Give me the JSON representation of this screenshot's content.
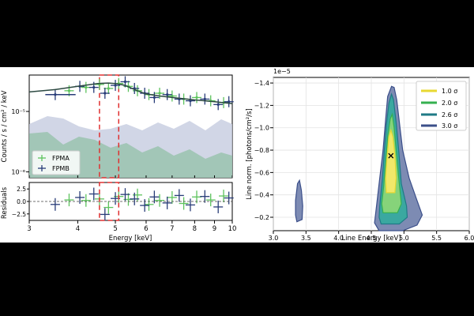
{
  "chart_data": [
    {
      "type": "scatter",
      "panel": "spectrum",
      "ylabel": "Counts / s / cm² / keV",
      "xlabel": "Energy [keV]",
      "xscale": "log",
      "yscale": "log",
      "xlim": [
        3,
        10
      ],
      "ylim": [
        8e-07,
        4e-05
      ],
      "ytick_labels": [
        "10⁻⁵",
        "10⁻⁶"
      ],
      "legend": {
        "placement": "lower-left",
        "entries": [
          "FPMA",
          "FPMB"
        ]
      },
      "colors": {
        "FPMA": "#5dc35d",
        "FPMB": "#283c78",
        "model": "#2d4a42",
        "highlight": "#e03030"
      },
      "highlight_band_keV": [
        4.55,
        5.1
      ],
      "series": [
        {
          "name": "FPMA",
          "x": [
            3.8,
            4.2,
            4.55,
            4.8,
            5.1,
            5.4,
            5.7,
            6.1,
            6.5,
            7.0,
            7.5,
            8.1,
            8.8,
            9.5
          ],
          "y": [
            2.2e-05,
            2.5e-05,
            2.8e-05,
            2.4e-05,
            2.9e-05,
            2.6e-05,
            2.2e-05,
            1.9e-05,
            2e-05,
            1.8e-05,
            1.6e-05,
            1.7e-05,
            1.5e-05,
            1.4e-05
          ]
        },
        {
          "name": "FPMB",
          "x": [
            3.5,
            4.05,
            4.4,
            4.7,
            5.0,
            5.3,
            5.6,
            5.95,
            6.3,
            6.8,
            7.3,
            7.8,
            8.5,
            9.2,
            9.8
          ],
          "y": [
            1.9e-05,
            2.6e-05,
            2.5e-05,
            2e-05,
            2.7e-05,
            3.1e-05,
            2.4e-05,
            2e-05,
            1.7e-05,
            1.9e-05,
            1.6e-05,
            1.5e-05,
            1.6e-05,
            1.3e-05,
            1.45e-05
          ]
        }
      ],
      "model_keV": [
        3,
        3.5,
        4,
        4.5,
        4.8,
        5.0,
        5.3,
        5.7,
        6.0,
        6.5,
        7,
        8,
        9,
        10
      ],
      "model_flux": [
        2.1e-05,
        2.3e-05,
        2.6e-05,
        2.9e-05,
        2.95e-05,
        2.9e-05,
        2.7e-05,
        2.2e-05,
        1.95e-05,
        1.8e-05,
        1.7e-05,
        1.55e-05,
        1.45e-05,
        1.35e-05
      ],
      "residuals": {
        "ylabel": "Residuals",
        "ylim": [
          -3.8,
          3.8
        ],
        "yticks": [
          2.5,
          0.0,
          -2.5
        ],
        "ytick_labels": [
          "2.5",
          "0.0",
          "−2.5"
        ],
        "xticks": [
          3,
          4,
          5,
          6,
          7,
          8,
          9,
          10
        ],
        "xtick_labels": [
          "3",
          "4",
          "5",
          "6",
          "7",
          "8",
          "9",
          "10"
        ],
        "FPMA": [
          0.3,
          0.2,
          0.5,
          -1.2,
          1.0,
          0.4,
          1.3,
          -0.6,
          0.2,
          0.8,
          -0.4,
          0.9,
          0.3,
          1.1
        ],
        "FPMB": [
          -0.6,
          0.8,
          1.5,
          -2.6,
          0.6,
          1.4,
          0.5,
          -0.8,
          0.9,
          -0.3,
          1.2,
          -0.7,
          1.0,
          -1.1,
          0.7
        ]
      }
    },
    {
      "type": "contour",
      "panel": "confidence",
      "xlabel": "Line Energy [keV]",
      "ylabel": "Line norm. [photons/cm²/s]",
      "y_offset_label": "1e−5",
      "xlim": [
        3.0,
        6.0
      ],
      "ylim": [
        -0.08,
        -1.45
      ],
      "xticks": [
        3.0,
        3.5,
        4.0,
        4.5,
        5.0,
        5.5,
        6.0
      ],
      "xtick_labels": [
        "3.0",
        "3.5",
        "4.0",
        "4.5",
        "5.0",
        "5.5",
        "6.0"
      ],
      "yticks": [
        -0.2,
        -0.4,
        -0.6,
        -0.8,
        -1.0,
        -1.2,
        -1.4
      ],
      "ytick_labels": [
        "−0.2",
        "−0.4",
        "−0.6",
        "−0.8",
        "−1.0",
        "−1.2",
        "−1.4"
      ],
      "grid": true,
      "legend": {
        "placement": "top-right",
        "entries": [
          "1.0 σ",
          "2.0 σ",
          "2.6 σ",
          "3.0 σ"
        ]
      },
      "best_fit": {
        "energy": 4.8,
        "norm": -0.75
      },
      "levels": [
        {
          "name": "3.0 σ",
          "color": "#3b4f8a",
          "fill": "#7d8bb3",
          "pts": [
            [
              4.62,
              -0.08
            ],
            [
              4.98,
              -0.08
            ],
            [
              5.2,
              -0.13
            ],
            [
              5.28,
              -0.22
            ],
            [
              5.2,
              -0.35
            ],
            [
              5.08,
              -0.55
            ],
            [
              4.98,
              -0.8
            ],
            [
              4.93,
              -1.05
            ],
            [
              4.89,
              -1.25
            ],
            [
              4.85,
              -1.36
            ],
            [
              4.81,
              -1.37
            ],
            [
              4.75,
              -1.28
            ],
            [
              4.72,
              -1.08
            ],
            [
              4.68,
              -0.8
            ],
            [
              4.63,
              -0.55
            ],
            [
              4.58,
              -0.3
            ],
            [
              4.55,
              -0.15
            ]
          ]
        },
        {
          "name": "2.6 σ",
          "color": "#1f7a86",
          "fill": "#3aa8a0",
          "pts": [
            [
              4.65,
              -0.14
            ],
            [
              4.93,
              -0.14
            ],
            [
              5.05,
              -0.2
            ],
            [
              5.04,
              -0.3
            ],
            [
              4.96,
              -0.5
            ],
            [
              4.92,
              -0.8
            ],
            [
              4.88,
              -1.05
            ],
            [
              4.84,
              -1.25
            ],
            [
              4.81,
              -1.3
            ],
            [
              4.77,
              -1.22
            ],
            [
              4.73,
              -1.02
            ],
            [
              4.7,
              -0.8
            ],
            [
              4.67,
              -0.55
            ],
            [
              4.63,
              -0.3
            ],
            [
              4.62,
              -0.2
            ]
          ]
        },
        {
          "name": "2.0 σ",
          "color": "#35b04f",
          "fill": "#86d37a",
          "pts": [
            [
              4.68,
              -0.24
            ],
            [
              4.9,
              -0.24
            ],
            [
              4.96,
              -0.32
            ],
            [
              4.92,
              -0.55
            ],
            [
              4.88,
              -0.8
            ],
            [
              4.85,
              -1.0
            ],
            [
              4.82,
              -1.12
            ],
            [
              4.79,
              -1.08
            ],
            [
              4.75,
              -0.92
            ],
            [
              4.72,
              -0.7
            ],
            [
              4.69,
              -0.48
            ],
            [
              4.66,
              -0.32
            ]
          ]
        },
        {
          "name": "1.0 σ",
          "color": "#e8d832",
          "fill": "#f0e86a",
          "pts": [
            [
              4.73,
              -0.42
            ],
            [
              4.86,
              -0.42
            ],
            [
              4.88,
              -0.55
            ],
            [
              4.86,
              -0.75
            ],
            [
              4.83,
              -0.92
            ],
            [
              4.8,
              -0.98
            ],
            [
              4.77,
              -0.92
            ],
            [
              4.74,
              -0.72
            ],
            [
              4.72,
              -0.55
            ]
          ]
        }
      ],
      "island_3sigma": [
        [
          3.36,
          -0.16
        ],
        [
          3.44,
          -0.18
        ],
        [
          3.45,
          -0.3
        ],
        [
          3.43,
          -0.44
        ],
        [
          3.4,
          -0.53
        ],
        [
          3.37,
          -0.5
        ],
        [
          3.34,
          -0.35
        ],
        [
          3.34,
          -0.22
        ]
      ]
    }
  ]
}
